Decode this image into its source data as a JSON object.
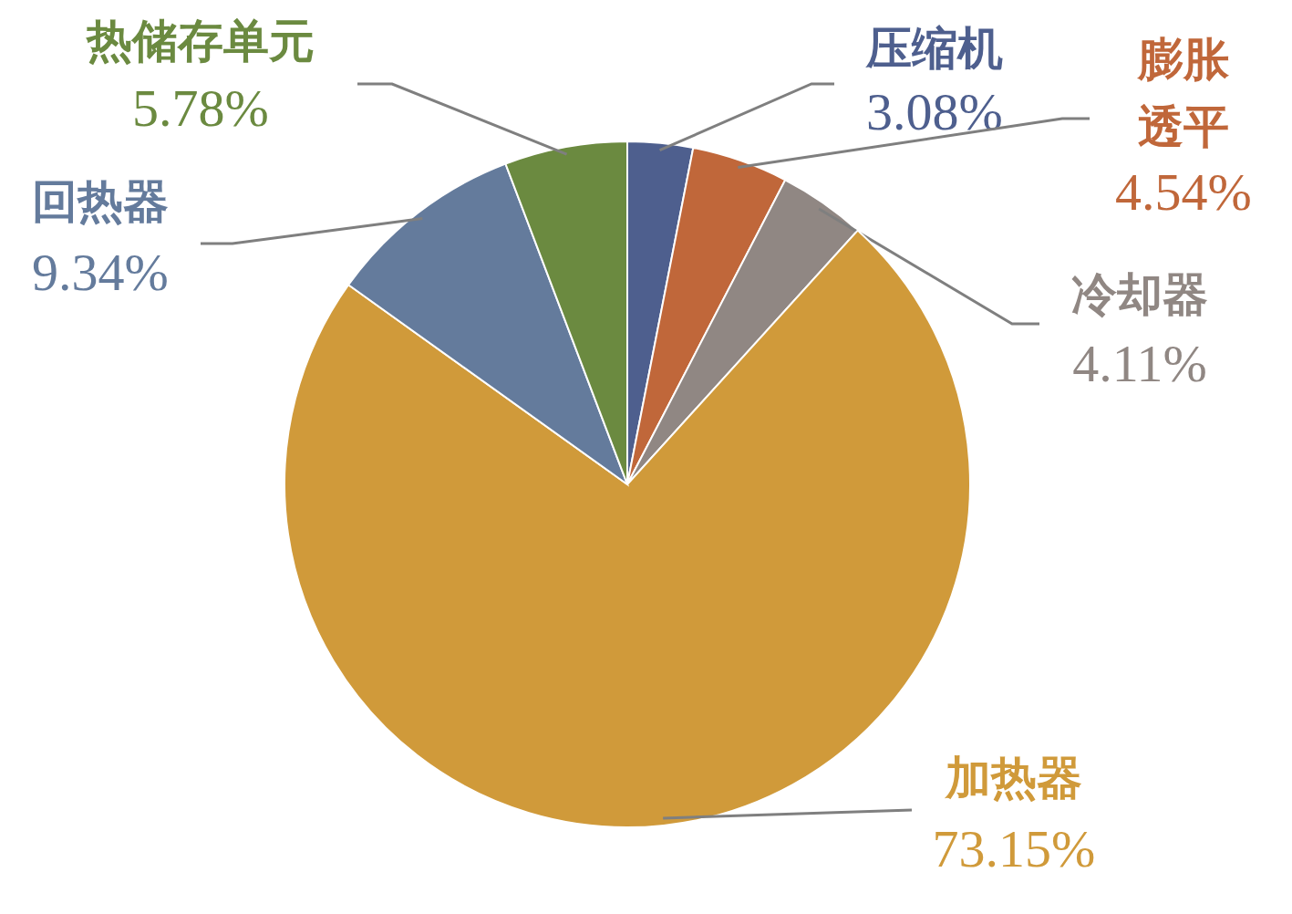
{
  "chart_data": {
    "type": "pie",
    "categories": [
      "压缩机",
      "膨胀透平",
      "冷却器",
      "加热器",
      "回热器",
      "热储存单元"
    ],
    "values": [
      3.08,
      4.54,
      4.11,
      73.15,
      9.34,
      5.78
    ],
    "value_labels": [
      "3.08%",
      "4.54%",
      "4.11%",
      "73.15%",
      "9.34%",
      "5.78%"
    ],
    "colors": [
      "#4e5f8e",
      "#c0673a",
      "#908783",
      "#d09a3a",
      "#647b9c",
      "#6b8a40"
    ]
  }
}
